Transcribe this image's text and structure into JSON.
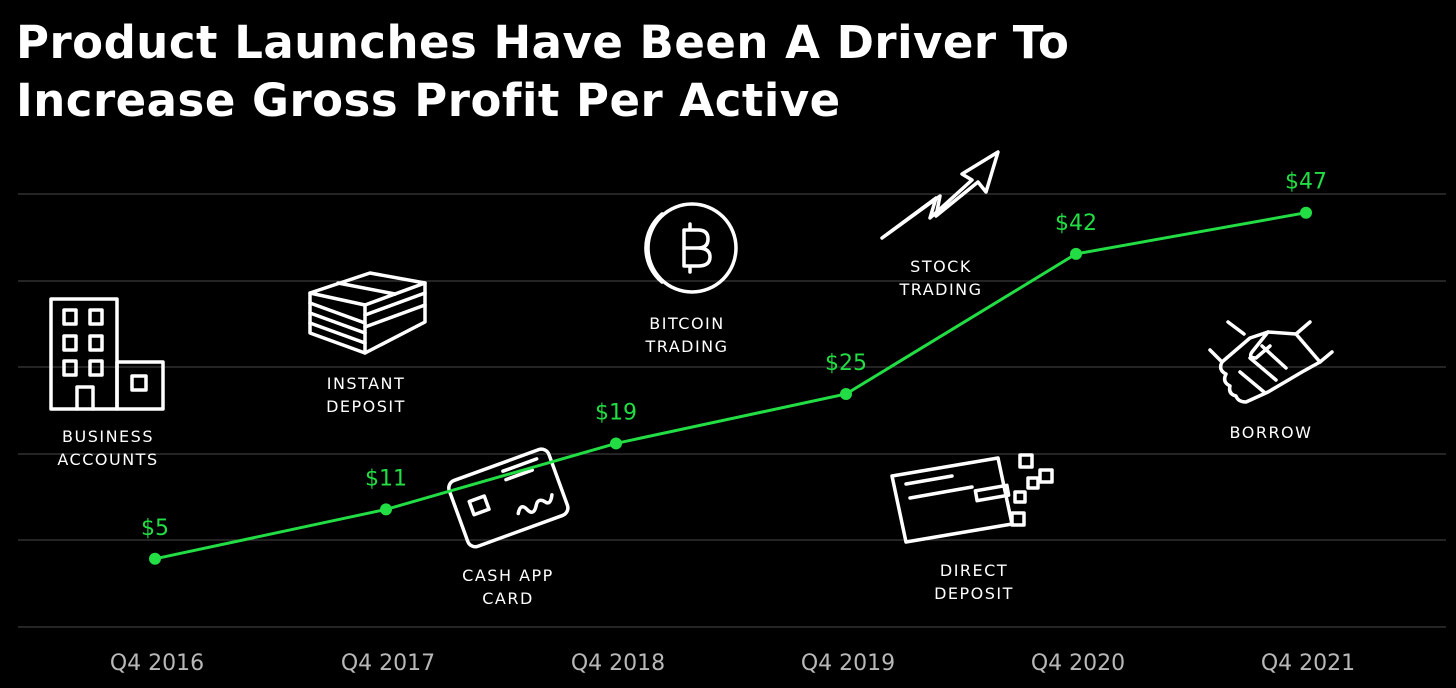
{
  "title_lines": [
    "Product Launches Have Been A Driver To",
    "Increase Gross Profit Per Active"
  ],
  "colors": {
    "background": "#000000",
    "line": "#22dd44",
    "grid": "#3a3a3a",
    "text": "#ffffff",
    "tick": "#b8b8b8"
  },
  "chart_data": {
    "type": "line",
    "title": "Product Launches Have Been A Driver To Increase Gross Profit Per Active",
    "categories": [
      "Q4 2016",
      "Q4 2017",
      "Q4 2018",
      "Q4 2019",
      "Q4 2020",
      "Q4 2021"
    ],
    "series": [
      {
        "values": [
          5,
          11,
          19,
          25,
          42,
          47
        ],
        "labels": [
          "$5",
          "$11",
          "$19",
          "$25",
          "$42",
          "$47"
        ]
      }
    ],
    "ylim": [
      0,
      50
    ],
    "grid": true,
    "xlabel": "",
    "ylabel": ""
  },
  "products": [
    {
      "lines": [
        "BUSINESS",
        "ACCOUNTS"
      ],
      "icon": "office-building-icon"
    },
    {
      "lines": [
        "INSTANT",
        "DEPOSIT"
      ],
      "icon": "cash-stack-icon"
    },
    {
      "lines": [
        "CASH APP",
        "CARD"
      ],
      "icon": "debit-card-icon"
    },
    {
      "lines": [
        "BITCOIN",
        "TRADING"
      ],
      "icon": "bitcoin-coin-icon"
    },
    {
      "lines": [
        "STOCK",
        "TRADING"
      ],
      "icon": "trending-arrow-icon"
    },
    {
      "lines": [
        "DIRECT",
        "DEPOSIT"
      ],
      "icon": "paycheck-icon"
    },
    {
      "lines": [
        "BORROW"
      ],
      "icon": "handshake-icon"
    }
  ]
}
